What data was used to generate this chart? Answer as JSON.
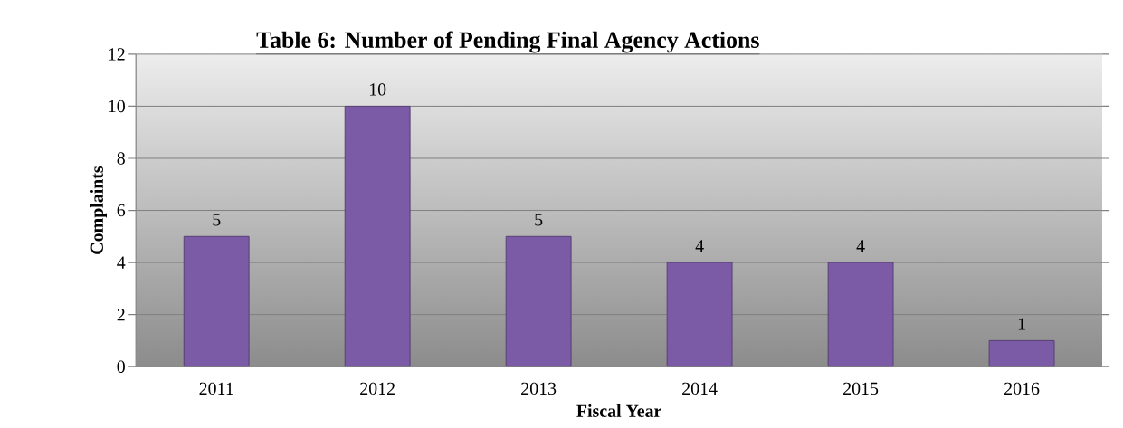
{
  "chart_data": {
    "type": "bar",
    "title": "Table 6:  Number of Pending Final Agency Actions",
    "xlabel": "Fiscal Year",
    "ylabel": "Complaints",
    "categories": [
      "2011",
      "2012",
      "2013",
      "2014",
      "2015",
      "2016"
    ],
    "values": [
      5,
      10,
      5,
      4,
      4,
      1
    ],
    "color": "#7b5aa6",
    "ylim": [
      0,
      12
    ],
    "yticks": [
      0,
      2,
      4,
      6,
      8,
      10,
      12
    ],
    "grid": "y",
    "data_labels": true
  }
}
